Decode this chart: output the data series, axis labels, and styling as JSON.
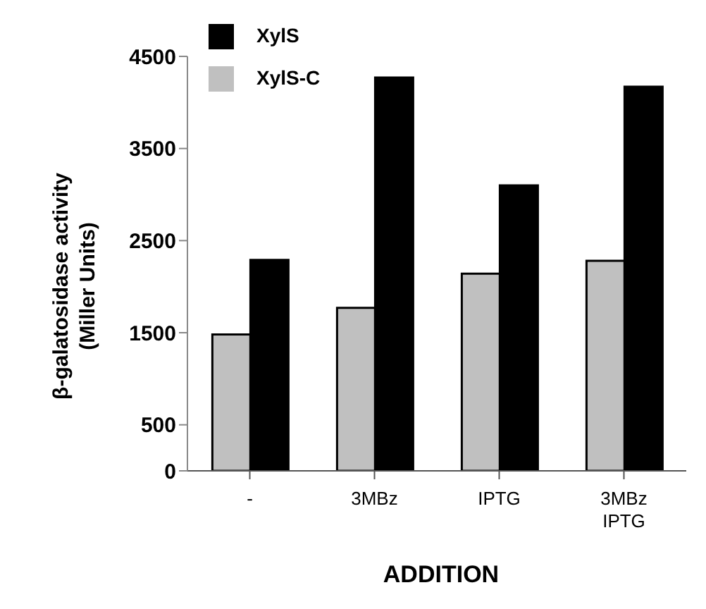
{
  "chart_data": {
    "type": "bar",
    "xlabel": "ADDITION",
    "ylabel": "β-galatosidase activity\n(Miller Units)",
    "categories": [
      "-",
      "3MBz",
      "IPTG",
      "3MBz\nIPTG"
    ],
    "series": [
      {
        "name": "XylS-C",
        "color": "#c0c0c0",
        "values": [
          1480,
          1770,
          2140,
          2280
        ]
      },
      {
        "name": "XylS",
        "color": "#000000",
        "values": [
          2290,
          4270,
          3100,
          4170
        ]
      }
    ],
    "ylim": [
      0,
      4500
    ],
    "yticks": [
      0,
      500,
      1500,
      2500,
      3500,
      4500
    ],
    "grid": false,
    "legend": "top left"
  }
}
